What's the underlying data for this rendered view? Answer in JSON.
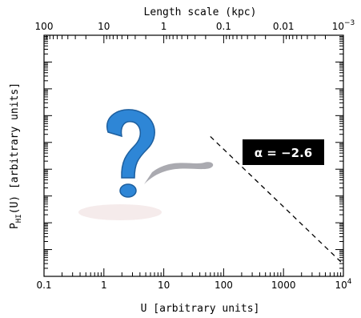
{
  "chart_data": {
    "type": "line",
    "xlabel": "U [arbitrary units]",
    "ylabel_main": "P",
    "ylabel_sub": "HI",
    "ylabel_rest": "(U) [arbitrary units]",
    "top_xlabel": "Length scale (kpc)",
    "xscale": "log",
    "xlim": [
      0.1,
      10000
    ],
    "top_xscale": "log",
    "top_xlim": [
      100,
      0.001
    ],
    "x_ticks": [
      {
        "value": 0.1,
        "label": "0.1"
      },
      {
        "value": 1,
        "label": "1"
      },
      {
        "value": 10,
        "label": "10"
      },
      {
        "value": 100,
        "label": "100"
      },
      {
        "value": 1000,
        "label": "1000"
      },
      {
        "value": 10000,
        "label": "10",
        "exp": "4"
      }
    ],
    "top_ticks": [
      {
        "value": 100,
        "label": "100"
      },
      {
        "value": 10,
        "label": "10"
      },
      {
        "value": 1,
        "label": "1"
      },
      {
        "value": 0.1,
        "label": "0.1"
      },
      {
        "value": 0.01,
        "label": "0.01"
      },
      {
        "value": 0.001,
        "label": "10",
        "exp": "−3"
      }
    ],
    "y_major_ticks": 9,
    "y_minor_ticks_per_major": 4,
    "series": [
      {
        "x": [
          60,
          10000
        ],
        "y_frac": [
          0.58,
          0.05
        ],
        "style": "dashed",
        "color": "#000000"
      }
    ],
    "annotation": {
      "text": "α = −2.6",
      "background": "#000000",
      "color": "#ffffff"
    },
    "image": {
      "name": "question-mark-icon",
      "color": "#2e86d6"
    }
  }
}
